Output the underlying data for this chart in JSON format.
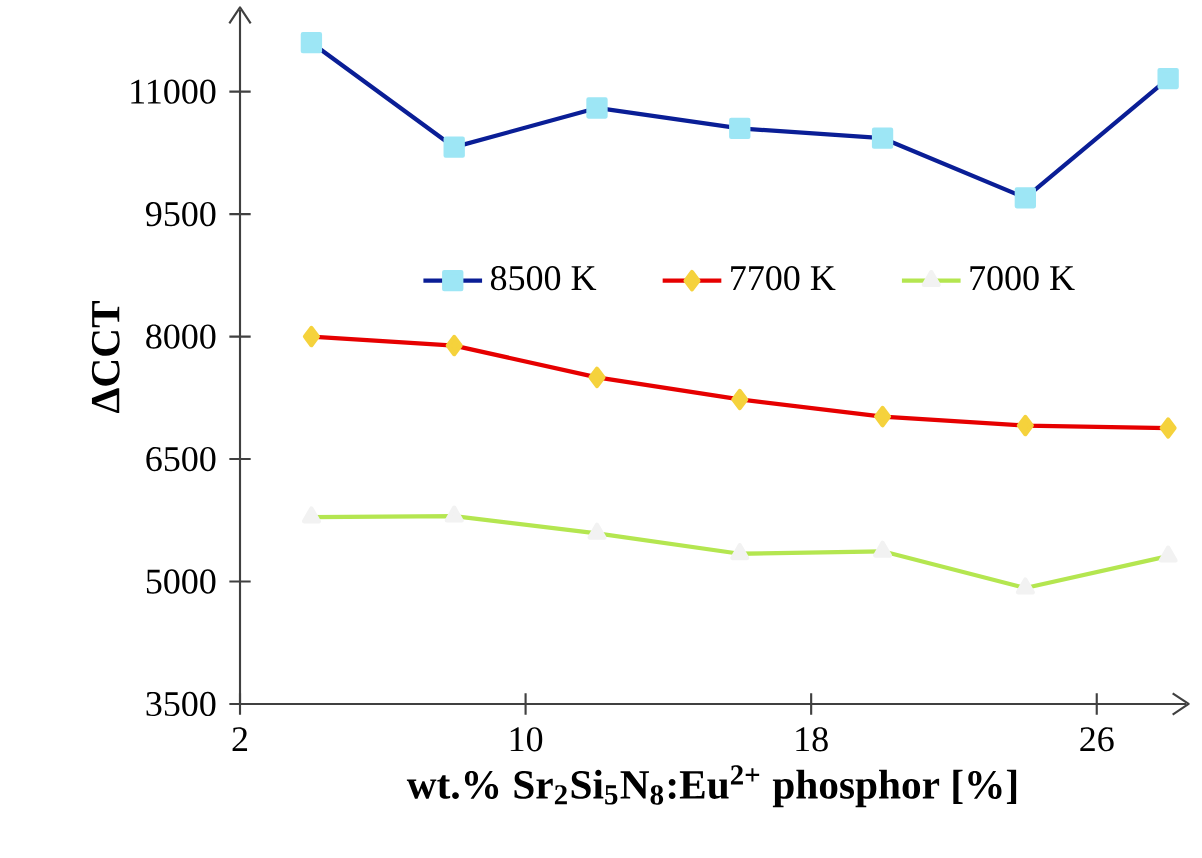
{
  "chart_data": {
    "type": "line",
    "xlabel": "wt.% Sr$_{2}$Si$_{5}$N$_{8}$:Eu$^{2+}$ phosphor [%]",
    "ylabel": "ΔCCT",
    "x": [
      4,
      8,
      12,
      16,
      20,
      24,
      28
    ],
    "series": [
      {
        "name": "8500 K",
        "color": "#0a1e96",
        "marker": "square",
        "values": [
          11600,
          10320,
          10800,
          10550,
          10430,
          9700,
          11160
        ]
      },
      {
        "name": "7700 K",
        "color": "#e60000",
        "marker": "diamond",
        "values": [
          8000,
          7890,
          7500,
          7230,
          7020,
          6910,
          6880
        ]
      },
      {
        "name": "7000 K",
        "color": "#b4e650",
        "marker": "triangle",
        "values": [
          5790,
          5800,
          5590,
          5340,
          5370,
          4920,
          5310
        ]
      }
    ],
    "xlim": [
      2,
      28.5
    ],
    "ylim": [
      3500,
      12000
    ],
    "xticks": [
      2,
      10,
      18,
      26
    ],
    "yticks": [
      3500,
      5000,
      6500,
      8000,
      9500,
      11000
    ],
    "grid": false,
    "legend": "top",
    "line_style": "solid"
  }
}
